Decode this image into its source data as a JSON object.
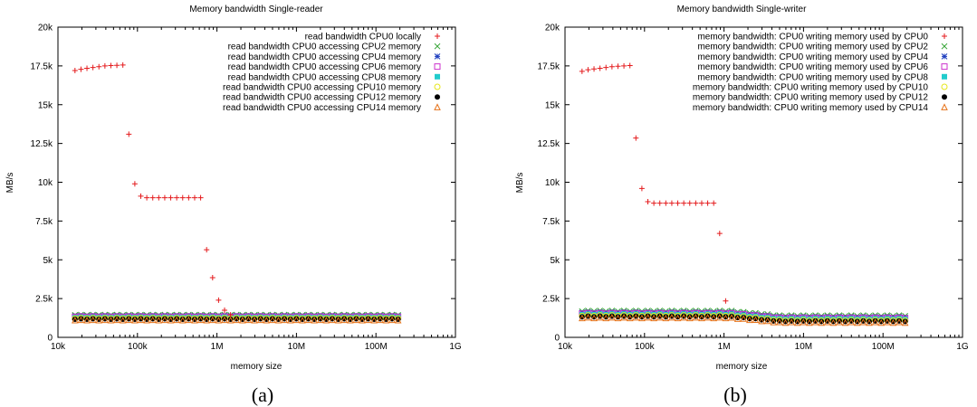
{
  "panels": [
    {
      "caption": "(a)",
      "chart_data": {
        "type": "scatter",
        "title": "Memory bandwidth Single-reader",
        "xlabel": "memory size",
        "ylabel": "MB/s",
        "xscale": "log",
        "xlim": [
          10000,
          1000000000
        ],
        "ylim": [
          0,
          20000
        ],
        "xticks": [
          10000,
          100000,
          1000000,
          10000000,
          100000000,
          1000000000
        ],
        "xtick_labels": [
          "10k",
          "100k",
          "1M",
          "10M",
          "100M",
          "1G"
        ],
        "yticks": [
          0,
          2500,
          5000,
          7500,
          10000,
          12500,
          15000,
          17500,
          20000
        ],
        "ytick_labels": [
          "0",
          "2.5k",
          "5k",
          "7.5k",
          "10k",
          "12.5k",
          "15k",
          "17.5k",
          "20k"
        ],
        "grid": false,
        "legend_position": "top-right",
        "series": [
          {
            "name": "read bandwidth CPU0 locally",
            "marker": "plus",
            "color": "#e41a1c",
            "x": [
              16384,
              19484,
              23170,
              27554,
              32768,
              38968,
              46341,
              55109,
              65536,
              77935,
              92682,
              110218,
              131072,
              155872,
              185364,
              220436,
              262144,
              311744,
              370728,
              440872,
              524288,
              623487,
              741455,
              881744,
              1048576,
              1246974,
              1482910
            ],
            "y": [
              17200,
              17280,
              17350,
              17400,
              17450,
              17500,
              17520,
              17540,
              17560,
              13100,
              9900,
              9100,
              9000,
              9000,
              9000,
              9000,
              9000,
              9000,
              9000,
              9000,
              9000,
              9000,
              5650,
              3850,
              2400,
              1750,
              1450
            ]
          },
          {
            "name": "read bandwidth CPU0 accessing CPU2 memory",
            "marker": "x",
            "color": "#2ca02c",
            "base": 1450,
            "jitter": 25
          },
          {
            "name": "read bandwidth CPU0 accessing CPU4 memory",
            "marker": "star",
            "color": "#1f3fbf",
            "base": 1380,
            "jitter": 25
          },
          {
            "name": "read bandwidth CPU0 accessing CPU6 memory",
            "marker": "square",
            "color": "#cc33cc",
            "base": 1330,
            "jitter": 25
          },
          {
            "name": "read bandwidth CPU0 accessing CPU8 memory",
            "marker": "filled-square",
            "color": "#22cccc",
            "base": 1280,
            "jitter": 25
          },
          {
            "name": "read bandwidth CPU0 accessing CPU10 memory",
            "marker": "circle",
            "color": "#e6e61a",
            "base": 1230,
            "jitter": 25
          },
          {
            "name": "read bandwidth CPU0 accessing CPU12 memory",
            "marker": "filled-circle",
            "color": "#000000",
            "base": 1180,
            "jitter": 25
          },
          {
            "name": "read bandwidth CPU0 accessing CPU14 memory",
            "marker": "triangle",
            "color": "#e6731a",
            "base": 1120,
            "jitter": 25
          }
        ]
      }
    },
    {
      "caption": "(b)",
      "chart_data": {
        "type": "scatter",
        "title": "Memory bandwidth Single-writer",
        "xlabel": "memory size",
        "ylabel": "MB/s",
        "xscale": "log",
        "xlim": [
          10000,
          1000000000
        ],
        "ylim": [
          0,
          20000
        ],
        "xticks": [
          10000,
          100000,
          1000000,
          10000000,
          100000000,
          1000000000
        ],
        "xtick_labels": [
          "10k",
          "100k",
          "1M",
          "10M",
          "100M",
          "1G"
        ],
        "yticks": [
          0,
          2500,
          5000,
          7500,
          10000,
          12500,
          15000,
          17500,
          20000
        ],
        "ytick_labels": [
          "0",
          "2.5k",
          "5k",
          "7.5k",
          "10k",
          "12.5k",
          "15k",
          "17.5k",
          "20k"
        ],
        "grid": false,
        "legend_position": "top-right",
        "series": [
          {
            "name": "memory bandwidth: CPU0 writing memory used by CPU0",
            "marker": "plus",
            "color": "#e41a1c",
            "x": [
              16384,
              19484,
              23170,
              27554,
              32768,
              38968,
              46341,
              55109,
              65536,
              77935,
              92682,
              110218,
              131072,
              155872,
              185364,
              220436,
              262144,
              311744,
              370728,
              440872,
              524288,
              623487,
              741455,
              881744,
              1048576
            ],
            "y": [
              17150,
              17250,
              17300,
              17350,
              17400,
              17450,
              17480,
              17500,
              17520,
              12850,
              9600,
              8750,
              8650,
              8650,
              8650,
              8650,
              8650,
              8650,
              8650,
              8650,
              8650,
              8650,
              8650,
              6700,
              2350
            ]
          },
          {
            "name": "memory bandwidth: CPU0 writing memory used by CPU2",
            "marker": "x",
            "color": "#2ca02c",
            "base": 1700,
            "drop": 300,
            "jitter": 40
          },
          {
            "name": "memory bandwidth: CPU0 writing memory used by CPU4",
            "marker": "star",
            "color": "#1f3fbf",
            "base": 1600,
            "drop": 300,
            "jitter": 40
          },
          {
            "name": "memory bandwidth: CPU0 writing memory used by CPU6",
            "marker": "square",
            "color": "#cc33cc",
            "base": 1540,
            "drop": 300,
            "jitter": 40
          },
          {
            "name": "memory bandwidth: CPU0 writing memory used by CPU8",
            "marker": "filled-square",
            "color": "#22cccc",
            "base": 1480,
            "drop": 300,
            "jitter": 40
          },
          {
            "name": "memory bandwidth: CPU0 writing memory used by CPU10",
            "marker": "circle",
            "color": "#e6e61a",
            "base": 1400,
            "drop": 300,
            "jitter": 40
          },
          {
            "name": "memory bandwidth: CPU0 writing memory used by CPU12",
            "marker": "filled-circle",
            "color": "#000000",
            "base": 1340,
            "drop": 300,
            "jitter": 40
          },
          {
            "name": "memory bandwidth: CPU0 writing memory used by CPU14",
            "marker": "triangle",
            "color": "#e6731a",
            "base": 1270,
            "drop": 300,
            "jitter": 40
          }
        ]
      }
    }
  ]
}
